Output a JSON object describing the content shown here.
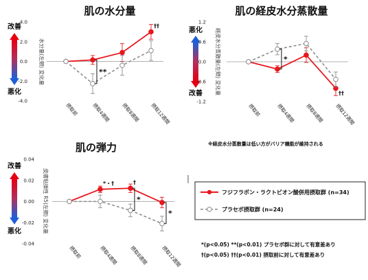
{
  "labels": {
    "good": "改善",
    "bad": "悪化"
  },
  "colors": {
    "treatment": "#e8171f",
    "placebo": "#8c8c8c",
    "good": "#e60012",
    "bad": "#1f5fd6"
  },
  "x_categories": [
    "摂取前",
    "摂取4週間",
    "摂取8週間",
    "摂取12週間"
  ],
  "chart_data": [
    {
      "id": "moisture",
      "type": "line",
      "title": "肌の水分量",
      "ylabel": "水分量(左頬) 変化量",
      "ylim": [
        -4.0,
        4.0
      ],
      "yticks": [
        "4.0",
        "2.0",
        "0.0",
        "-2.0",
        "-4.0"
      ],
      "improve_up": true,
      "series": [
        {
          "key": "treatment",
          "values": [
            0.0,
            0.15,
            0.9,
            3.0
          ],
          "err": [
            0,
            0.45,
            0.9,
            0.75
          ]
        },
        {
          "key": "placebo",
          "values": [
            0.0,
            -2.25,
            -0.4,
            1.1
          ],
          "err": [
            0,
            1.0,
            1.0,
            1.0
          ]
        }
      ],
      "annotations": [
        {
          "text": "**",
          "index": 1
        },
        {
          "text": "††",
          "index": 3
        }
      ]
    },
    {
      "id": "tewl",
      "type": "line",
      "title": "肌の経皮水分蒸散量",
      "ylabel": "経皮水分蒸散量(左頬) 変化量",
      "ylim": [
        -1.2,
        1.2
      ],
      "yticks": [
        "1.2",
        "0.6",
        "0.0",
        "-0.6",
        "-1.2"
      ],
      "improve_up": false,
      "series": [
        {
          "key": "treatment",
          "values": [
            0.0,
            -0.22,
            0.2,
            -0.8
          ],
          "err": [
            0,
            0.1,
            0.22,
            0.22
          ]
        },
        {
          "key": "placebo",
          "values": [
            0.0,
            0.38,
            0.55,
            -0.53
          ],
          "err": [
            0,
            0.17,
            0.22,
            0.22
          ]
        }
      ],
      "annotations": [
        {
          "text": "*",
          "index": 1
        },
        {
          "text": "††",
          "index": 3
        }
      ],
      "note": "※経皮水分蒸散量は低い方がバリア機能が維持される"
    },
    {
      "id": "elasticity",
      "type": "line",
      "title": "肌の弾力",
      "ylabel": "皮膚粘弾性 R5(左頬) 変化量",
      "ylim": [
        -0.04,
        0.04
      ],
      "yticks": [
        "0.04",
        "0.02",
        "0.00",
        "-0.02",
        "-0.04"
      ],
      "improve_up": true,
      "series": [
        {
          "key": "treatment",
          "values": [
            0.0,
            0.0115,
            0.0125,
            -0.001
          ],
          "err": [
            0,
            0.003,
            0.004,
            0.005
          ]
        },
        {
          "key": "placebo",
          "values": [
            0.0,
            0.0,
            -0.0085,
            -0.021
          ],
          "err": [
            0,
            0.006,
            0.006,
            0.007
          ]
        }
      ],
      "annotations": [
        {
          "text": "*",
          "index": 2
        },
        {
          "text": "*",
          "index": 3
        },
        {
          "text": "*・†",
          "index": 1
        },
        {
          "text": "†",
          "index": 2
        }
      ]
    }
  ],
  "legend": {
    "treatment": "フジフラボン・ラクトビオン酸併用摂取群 (n=34)",
    "placebo": "プラセボ摂取群 (n=24)"
  },
  "footnotes": [
    "*(p<0.05)  **(p<0.01)   プラセボ群に対して有意差あり",
    "†(p<0.05)  ††(p<0.01)   摂取前に対して有意差あり"
  ]
}
